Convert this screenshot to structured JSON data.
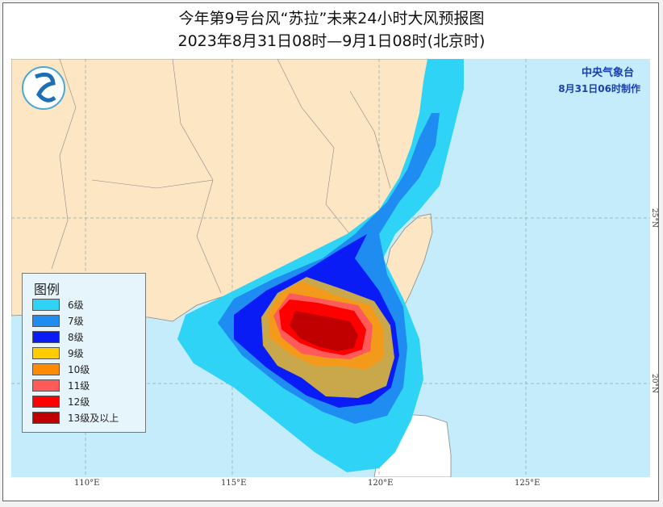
{
  "title": "今年第9号台风“苏拉”未来24小时大风预报图",
  "subtitle": "2023年8月31日08时—9月1日08时(北京时)",
  "agency": {
    "name": "中央气象台",
    "issued": "8月31日06时制作"
  },
  "legend": {
    "title": "图例",
    "items": [
      {
        "label": "6级",
        "color": "#2fd3f5"
      },
      {
        "label": "7级",
        "color": "#1e8cf0"
      },
      {
        "label": "8级",
        "color": "#0a1cf5"
      },
      {
        "label": "9级",
        "color": "#ffcc00"
      },
      {
        "label": "10级",
        "color": "#ff8c00"
      },
      {
        "label": "11级",
        "color": "#ff5a5a"
      },
      {
        "label": "12级",
        "color": "#ff0000"
      },
      {
        "label": "13级及以上",
        "color": "#c00000"
      }
    ]
  },
  "axes": {
    "longitude": [
      "110°E",
      "115°E",
      "120°E",
      "125°E"
    ],
    "latitude": [
      "25°N",
      "20°N"
    ]
  },
  "colors": {
    "land": "#fde6c4",
    "sea": "#c4ecfa",
    "map_9": "#c8a84a",
    "map_10": "#f39a1a"
  }
}
